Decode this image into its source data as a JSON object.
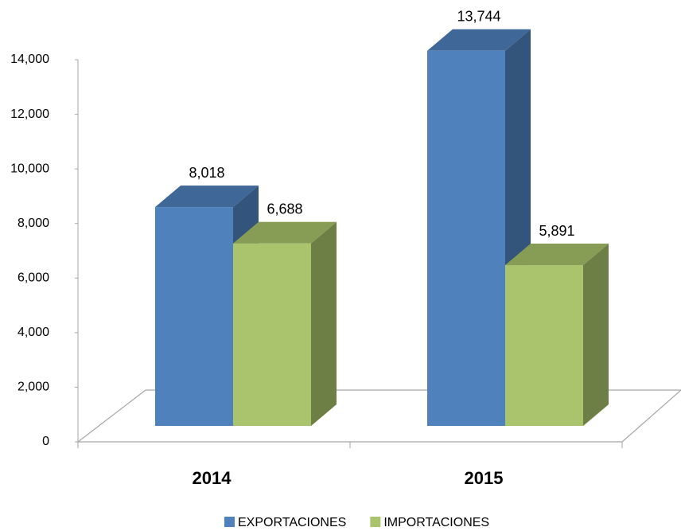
{
  "chart_data": {
    "type": "bar3d",
    "categories": [
      "2014",
      "2015"
    ],
    "series": [
      {
        "name": "EXPORTACIONES",
        "color": "#4f81bd",
        "values": [
          8018,
          13744
        ],
        "value_labels": [
          "8,018",
          "13,744"
        ]
      },
      {
        "name": "IMPORTACIONES",
        "color": "#a9c46c",
        "values": [
          6688,
          5891
        ],
        "value_labels": [
          "6,688",
          "5,891"
        ]
      }
    ],
    "ylim": [
      0,
      14000
    ],
    "yticks": [
      0,
      {
        "value": 2000,
        "label": "2,000"
      },
      {
        "value": 4000,
        "label": "4,000"
      },
      {
        "value": 6000,
        "label": "6,000"
      },
      {
        "value": 8000,
        "label": "8,000"
      },
      {
        "value": 10000,
        "label": "10,000"
      },
      {
        "value": 12000,
        "label": "12,000"
      },
      {
        "value": 14000,
        "label": "14,000"
      }
    ],
    "legend": "bottom"
  }
}
